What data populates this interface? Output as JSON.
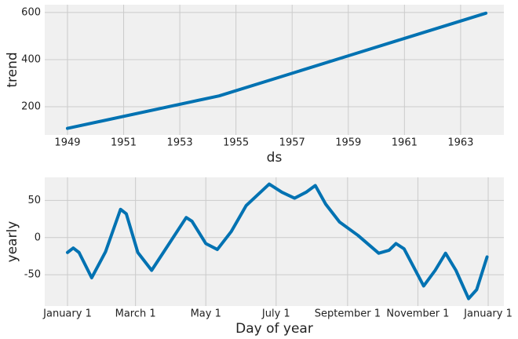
{
  "chart_data": [
    {
      "type": "line",
      "xlabel": "ds",
      "ylabel": "trend",
      "x": [
        1949,
        1954.4,
        1957,
        1959,
        1961,
        1963.9
      ],
      "values": [
        108,
        246,
        342,
        416,
        490,
        597
      ],
      "color": "#0072b2",
      "xlim": [
        1948.19,
        1964.54
      ],
      "ylim": [
        80,
        633
      ],
      "xticks": [
        1949,
        1951,
        1953,
        1955,
        1957,
        1959,
        1961,
        1963
      ],
      "yticks": [
        200,
        400,
        600
      ],
      "grid": true
    },
    {
      "type": "line",
      "xlabel": "Day of year",
      "ylabel": "yearly",
      "x": [
        0,
        5,
        10,
        21,
        33,
        46,
        51,
        61,
        73,
        84,
        103,
        108,
        120,
        130,
        142,
        155,
        175,
        186,
        197,
        207,
        215,
        224,
        236,
        252,
        270,
        279,
        285,
        292,
        309,
        319,
        328,
        337,
        348,
        355,
        364
      ],
      "values": [
        -20,
        -14,
        -20,
        -54,
        -19,
        38,
        32,
        -20,
        -44,
        -18,
        27,
        22,
        -8,
        -16,
        8,
        43,
        72,
        61,
        53,
        61,
        70,
        45,
        21,
        3,
        -21,
        -17,
        -8,
        -15,
        -65,
        -44,
        -21,
        -44,
        -82,
        -70,
        -26
      ],
      "color": "#0072b2",
      "xlim": [
        -19.75,
        378.6
      ],
      "ylim": [
        -92,
        81
      ],
      "xticks": [
        {
          "value": 0,
          "label": "January 1"
        },
        {
          "value": 59,
          "label": "March 1"
        },
        {
          "value": 120,
          "label": "May 1"
        },
        {
          "value": 181,
          "label": "July 1"
        },
        {
          "value": 243,
          "label": "September 1"
        },
        {
          "value": 304,
          "label": "November 1"
        },
        {
          "value": 365,
          "label": "January 1"
        }
      ],
      "yticks": [
        -50,
        0,
        50
      ],
      "grid": true
    }
  ]
}
